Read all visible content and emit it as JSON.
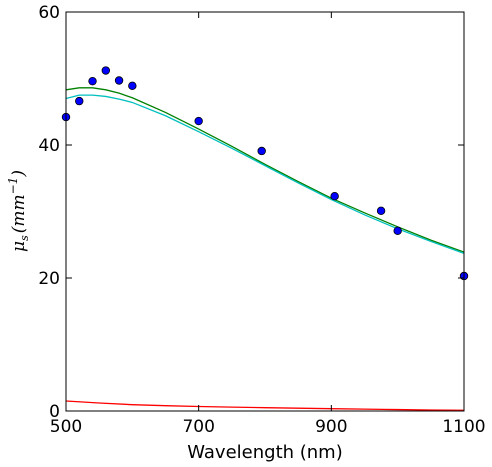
{
  "chart_data": {
    "type": "scatter",
    "title": "",
    "xlabel": "Wavelength (nm)",
    "ylabel": {
      "symbol": "μ",
      "subscript": "s",
      "unit_open": "(mm",
      "unit_sup": "−1",
      "unit_close": ")"
    },
    "xlim": [
      500,
      1100
    ],
    "ylim": [
      0,
      60
    ],
    "x_ticks": [
      500,
      700,
      900,
      1100
    ],
    "y_ticks": [
      0,
      20,
      40,
      60
    ],
    "grid": false,
    "series": [
      {
        "kind": "points",
        "color": "#0000ff",
        "x": [
          500,
          520,
          540,
          560,
          580,
          600,
          700,
          795,
          905,
          975,
          1000,
          1100
        ],
        "y": [
          44.2,
          46.6,
          49.6,
          51.2,
          49.7,
          48.9,
          43.6,
          39.1,
          32.3,
          30.1,
          27.1,
          20.3
        ]
      },
      {
        "kind": "line",
        "color": "#008000",
        "x": [
          500,
          520,
          540,
          560,
          580,
          600,
          650,
          700,
          750,
          800,
          850,
          900,
          950,
          1000,
          1050,
          1100
        ],
        "y": [
          48.3,
          48.6,
          48.6,
          48.3,
          47.8,
          47.1,
          44.9,
          42.4,
          39.8,
          37.1,
          34.5,
          32.0,
          29.8,
          27.7,
          25.7,
          23.9
        ]
      },
      {
        "kind": "line",
        "color": "#00bfbf",
        "x": [
          500,
          520,
          540,
          560,
          580,
          600,
          650,
          700,
          750,
          800,
          850,
          900,
          950,
          1000,
          1050,
          1100
        ],
        "y": [
          47.0,
          47.5,
          47.5,
          47.3,
          46.9,
          46.4,
          44.4,
          42.0,
          39.5,
          36.9,
          34.3,
          31.8,
          29.5,
          27.4,
          25.5,
          23.7
        ]
      },
      {
        "kind": "line",
        "color": "#ff0000",
        "x": [
          500,
          550,
          600,
          650,
          700,
          750,
          800,
          850,
          900,
          950,
          1000,
          1050,
          1100
        ],
        "y": [
          1.5,
          1.2,
          0.95,
          0.8,
          0.68,
          0.58,
          0.5,
          0.42,
          0.35,
          0.28,
          0.22,
          0.15,
          0.1
        ]
      }
    ]
  }
}
